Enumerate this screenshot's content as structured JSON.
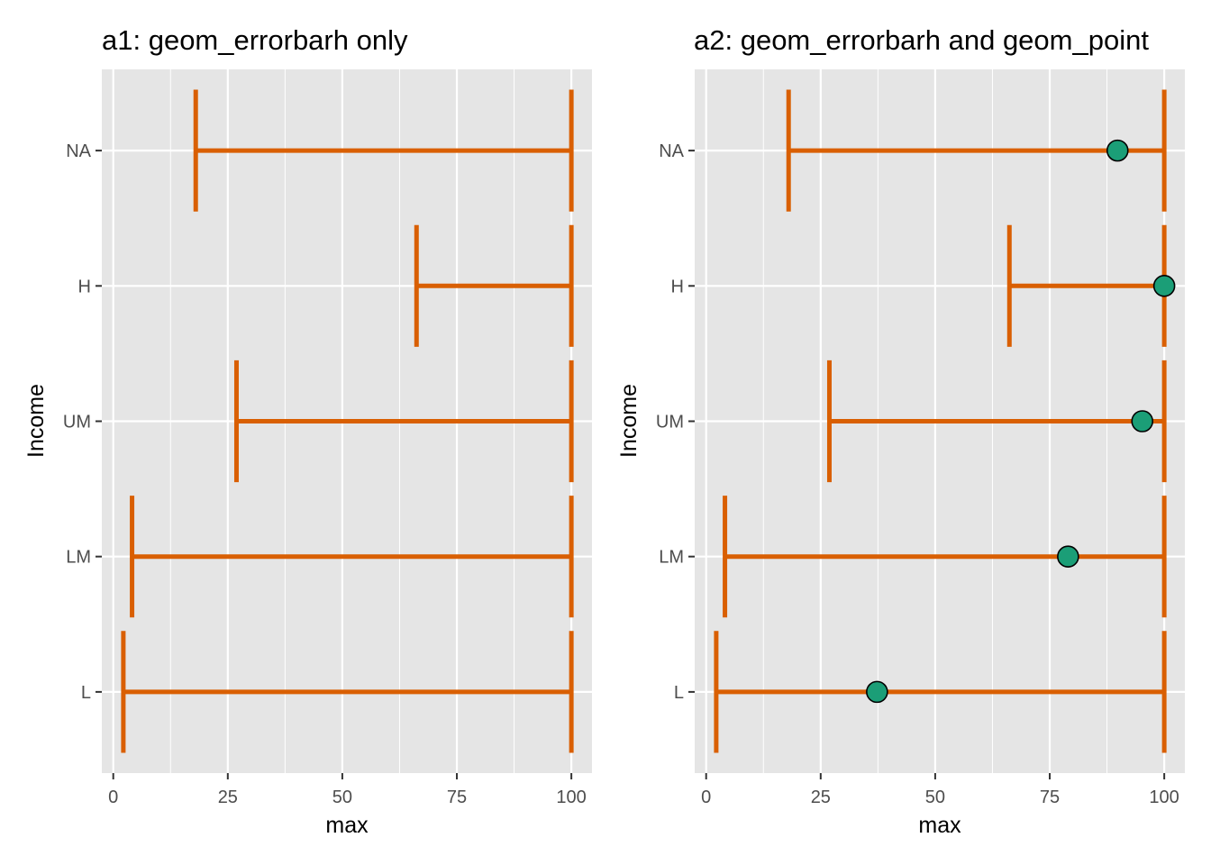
{
  "colors": {
    "panel_background": "#e5e5e5",
    "grid_major": "#ffffff",
    "errorbar": "#d95f02",
    "point_fill": "#1b9e77",
    "point_stroke": "#000000"
  },
  "chart_data": [
    {
      "type": "errorbarh",
      "title": "a1: geom_errorbarh only",
      "xlabel": "max",
      "ylabel": "Income",
      "xlim": [
        -2.5,
        104.5
      ],
      "xticks": [
        0,
        25,
        50,
        75,
        100
      ],
      "xtick_labels": [
        "0",
        "25",
        "50",
        "75",
        "100"
      ],
      "categories": [
        "L",
        "LM",
        "UM",
        "H",
        "NA"
      ],
      "grid": true,
      "series": [
        {
          "xmin": [
            2.2,
            4.1,
            26.9,
            66.2,
            18.0
          ],
          "xmax": [
            100,
            100,
            100,
            100,
            100
          ]
        }
      ]
    },
    {
      "type": "errorbarh",
      "title": "a2: geom_errorbarh and geom_point",
      "xlabel": "max",
      "ylabel": "Income",
      "xlim": [
        -2.5,
        104.5
      ],
      "xticks": [
        0,
        25,
        50,
        75,
        100
      ],
      "xtick_labels": [
        "0",
        "25",
        "50",
        "75",
        "100"
      ],
      "categories": [
        "L",
        "LM",
        "UM",
        "H",
        "NA"
      ],
      "grid": true,
      "series": [
        {
          "xmin": [
            2.2,
            4.1,
            26.9,
            66.2,
            18.0
          ],
          "xmax": [
            100,
            100,
            100,
            100,
            100
          ],
          "points": [
            37.3,
            79.0,
            95.2,
            100,
            89.8
          ]
        }
      ]
    }
  ]
}
